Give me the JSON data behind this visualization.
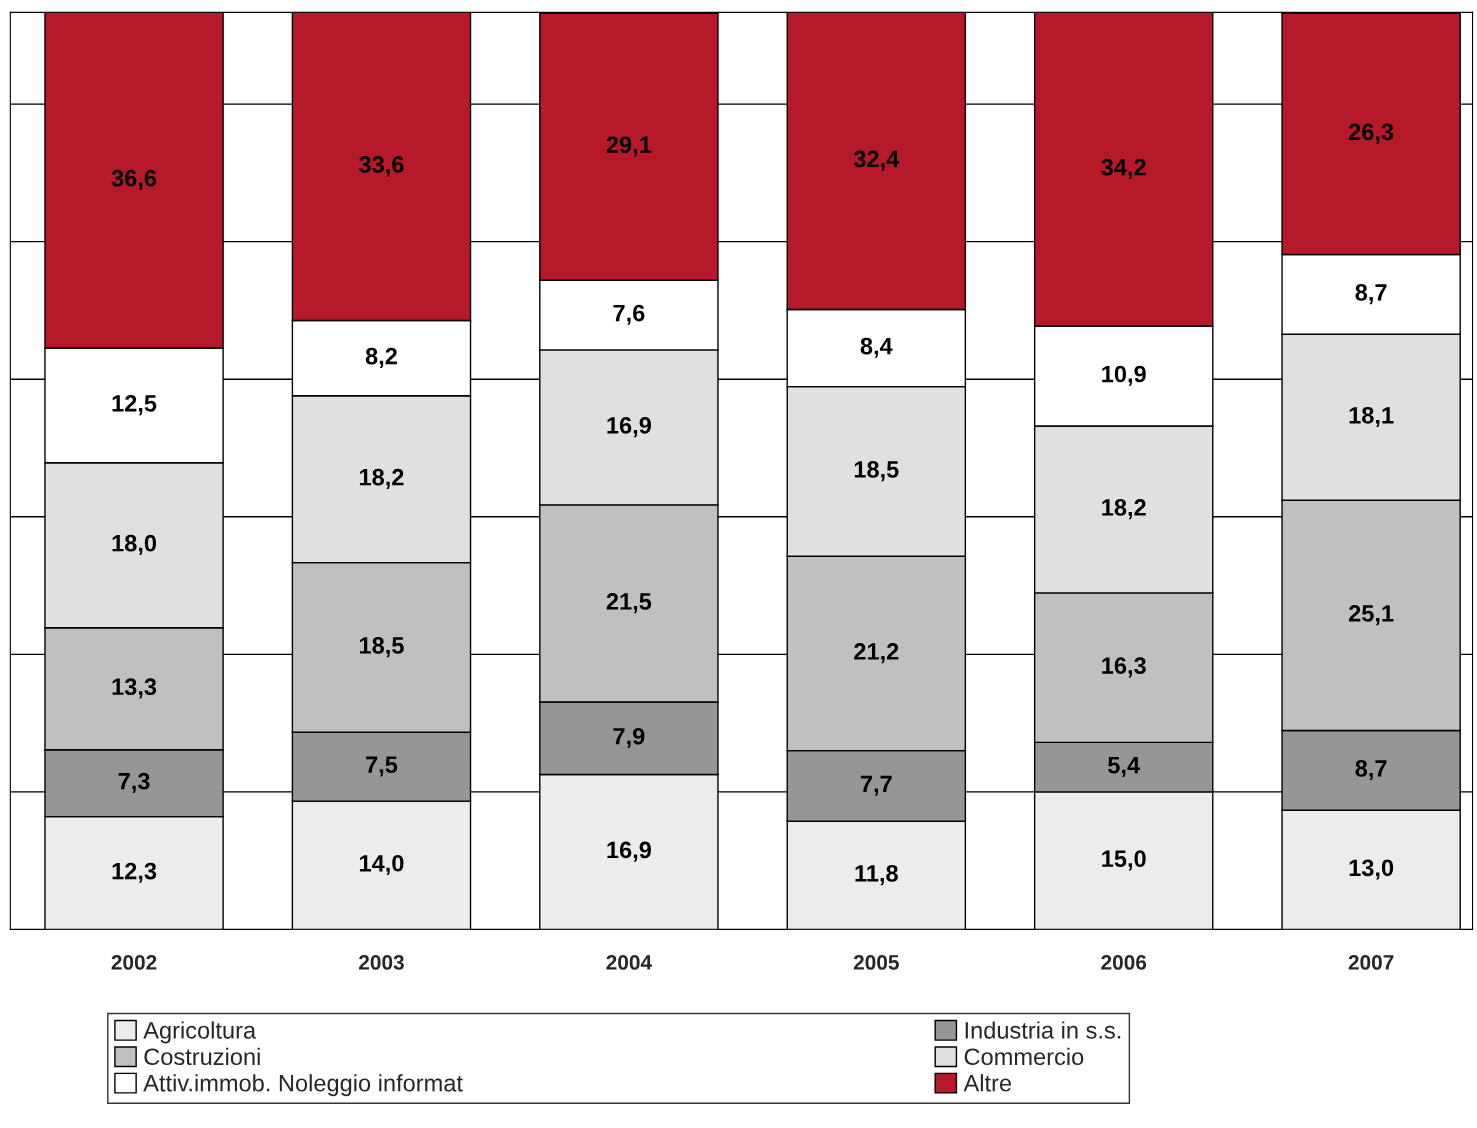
{
  "chart_data": {
    "type": "bar",
    "stacked": true,
    "categories": [
      "2002",
      "2003",
      "2004",
      "2005",
      "2006",
      "2007"
    ],
    "series": [
      {
        "name": "Agricoltura",
        "color": "#ececec",
        "values": [
          12.3,
          14.0,
          16.9,
          11.8,
          15.0,
          13.0
        ],
        "value_labels": [
          "12,3",
          "14,0",
          "16,9",
          "11,8",
          "15,0",
          "13,0"
        ]
      },
      {
        "name": "Industria in s.s.",
        "color": "#969696",
        "values": [
          7.3,
          7.5,
          7.9,
          7.7,
          5.4,
          8.7
        ],
        "value_labels": [
          "7,3",
          "7,5",
          "7,9",
          "7,7",
          "5,4",
          "8,7"
        ]
      },
      {
        "name": "Costruzioni",
        "color": "#c0c0c0",
        "values": [
          13.3,
          18.5,
          21.5,
          21.2,
          16.3,
          25.1
        ],
        "value_labels": [
          "13,3",
          "18,5",
          "21,5",
          "21,2",
          "16,3",
          "25,1"
        ]
      },
      {
        "name": "Commercio",
        "color": "#e0e0e0",
        "values": [
          18.0,
          18.2,
          16.9,
          18.5,
          18.2,
          18.1
        ],
        "value_labels": [
          "18,0",
          "18,2",
          "16,9",
          "18,5",
          "18,2",
          "18,1"
        ]
      },
      {
        "name": "Attiv.immob. Noleggio informat",
        "color": "#ffffff",
        "values": [
          12.5,
          8.2,
          7.6,
          8.4,
          10.9,
          8.7
        ],
        "value_labels": [
          "12,5",
          "8,2",
          "7,6",
          "8,4",
          "10,9",
          "8,7"
        ]
      },
      {
        "name": "Altre",
        "color": "#b5192a",
        "values": [
          36.6,
          33.6,
          29.1,
          32.4,
          34.2,
          26.3
        ],
        "value_labels": [
          "36,6",
          "33,6",
          "29,1",
          "32,4",
          "34,2",
          "26,3"
        ]
      }
    ],
    "grid": "y",
    "tick_labels": "x",
    "legend": "bottom"
  }
}
